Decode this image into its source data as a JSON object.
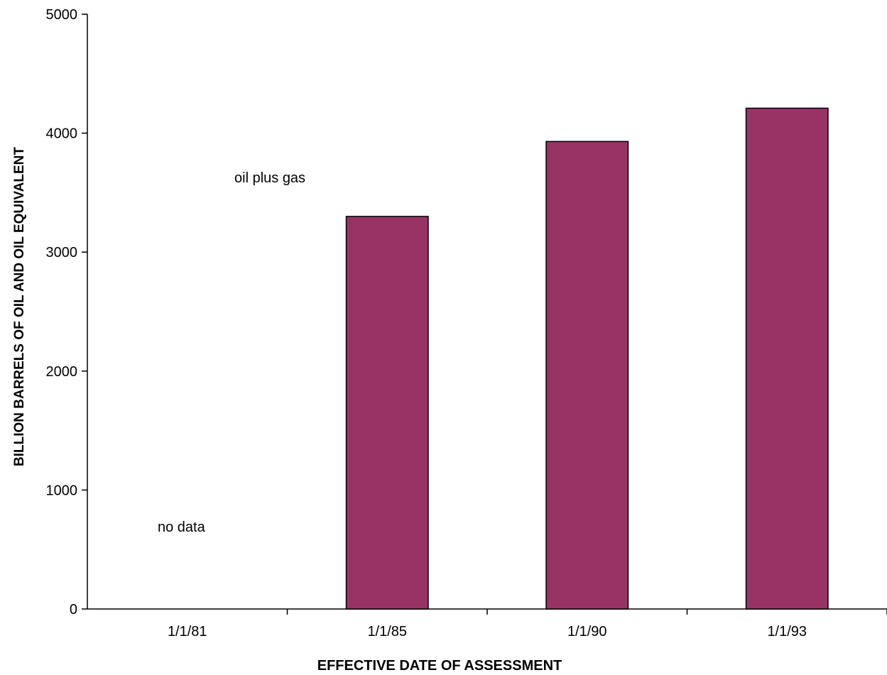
{
  "chart_data": {
    "type": "bar",
    "categories": [
      "1/1/81",
      "1/1/85",
      "1/1/90",
      "1/1/93"
    ],
    "values": [
      null,
      3300,
      3930,
      4210
    ],
    "xlabel": "EFFECTIVE DATE OF ASSESSMENT",
    "ylabel": "BILLION BARRELS OF OIL AND OIL EQUIVALENT",
    "ylim": [
      0,
      5000
    ],
    "yticks": [
      0,
      1000,
      2000,
      3000,
      4000,
      5000
    ],
    "grid": false,
    "bar_color": "#993366",
    "annotations": [
      {
        "text": "oil plus gas"
      },
      {
        "text": "no data"
      }
    ]
  }
}
